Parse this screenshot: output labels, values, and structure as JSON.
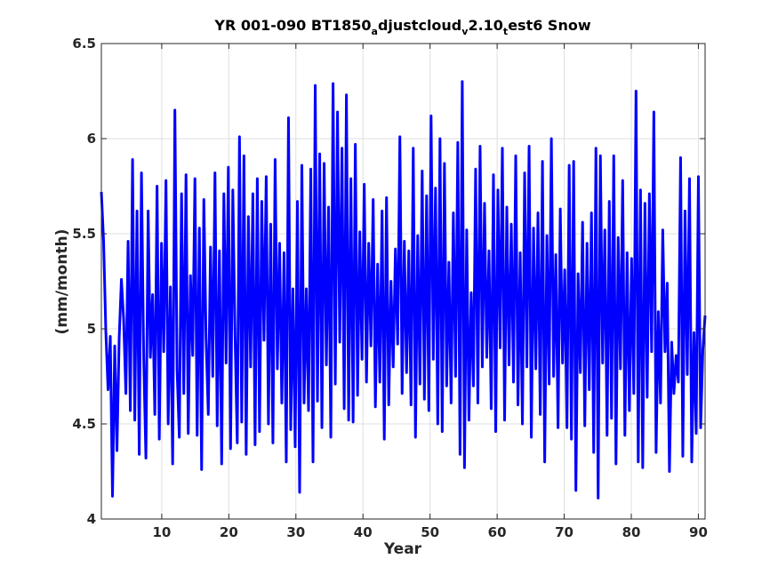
{
  "chart_data": {
    "type": "line",
    "title": {
      "prefix": "YR 001-090 BT1850",
      "sub1": "a",
      "mid": "djustcloud",
      "sub2": "v",
      "mid2": "2.10",
      "sub3": "t",
      "suffix": "est6 Snow"
    },
    "xlabel": "Year",
    "ylabel": "(mm/month)",
    "xlim": [
      1,
      91
    ],
    "ylim": [
      4,
      6.5
    ],
    "xticks": [
      10,
      20,
      30,
      40,
      50,
      60,
      70,
      80,
      90
    ],
    "yticks": [
      4,
      4.5,
      5,
      5.5,
      6,
      6.5
    ],
    "ytick_labels": [
      "4",
      "4.5",
      "5",
      "5.5",
      "6",
      "6.5"
    ],
    "grid": true,
    "line_color": "#0000ff",
    "series": [
      {
        "values": [
          5.72,
          5.46,
          4.99,
          4.68,
          4.96,
          4.12,
          4.91,
          4.36,
          4.95,
          5.26,
          5.05,
          4.66,
          5.46,
          4.57,
          5.89,
          4.52,
          5.62,
          4.34,
          5.82,
          4.85,
          4.32,
          5.62,
          4.85,
          5.18,
          4.55,
          5.75,
          4.42,
          5.45,
          4.88,
          5.78,
          4.5,
          5.22,
          4.29,
          6.15,
          4.78,
          4.43,
          5.71,
          4.66,
          5.81,
          4.45,
          5.28,
          4.86,
          5.79,
          4.44,
          5.53,
          4.26,
          5.68,
          4.95,
          4.55,
          5.43,
          4.75,
          5.82,
          4.49,
          5.41,
          4.29,
          5.71,
          4.82,
          5.85,
          4.37,
          5.73,
          4.97,
          4.4,
          6.01,
          4.51,
          5.91,
          4.34,
          5.59,
          4.8,
          5.71,
          4.39,
          5.79,
          4.46,
          5.67,
          4.94,
          5.8,
          4.5,
          5.55,
          4.4,
          5.89,
          4.79,
          5.45,
          4.61,
          5.4,
          4.3,
          6.11,
          4.47,
          5.21,
          4.38,
          5.67,
          4.14,
          5.86,
          4.61,
          5.21,
          4.57,
          5.84,
          4.3,
          6.28,
          4.62,
          5.92,
          4.48,
          5.87,
          4.81,
          5.64,
          4.43,
          6.29,
          4.71,
          6.14,
          4.93,
          5.95,
          4.58,
          6.23,
          4.52,
          5.79,
          4.51,
          5.97,
          4.65,
          5.51,
          4.84,
          5.76,
          4.72,
          5.45,
          4.91,
          5.68,
          4.59,
          5.34,
          4.72,
          5.62,
          4.42,
          5.69,
          4.6,
          5.25,
          4.8,
          5.42,
          4.92,
          6.01,
          4.66,
          5.46,
          4.77,
          5.41,
          4.6,
          5.95,
          4.43,
          5.49,
          4.71,
          5.83,
          4.63,
          5.7,
          4.57,
          6.12,
          4.84,
          5.74,
          4.5,
          6.0,
          4.46,
          5.87,
          4.7,
          5.35,
          4.61,
          5.61,
          4.75,
          5.98,
          4.34,
          6.3,
          4.27,
          5.52,
          4.52,
          5.19,
          4.7,
          5.84,
          4.61,
          5.96,
          4.8,
          5.66,
          4.85,
          5.41,
          4.58,
          5.81,
          4.46,
          5.73,
          4.9,
          5.95,
          4.52,
          5.64,
          4.81,
          5.55,
          4.72,
          5.91,
          4.6,
          5.4,
          4.5,
          5.82,
          4.8,
          5.96,
          4.43,
          5.53,
          4.79,
          5.61,
          4.55,
          5.88,
          4.3,
          5.49,
          4.71,
          6.0,
          4.75,
          5.39,
          4.48,
          5.63,
          4.82,
          5.31,
          4.48,
          5.86,
          4.42,
          5.88,
          4.15,
          5.29,
          4.77,
          5.56,
          4.49,
          5.45,
          4.68,
          5.61,
          4.35,
          5.95,
          4.11,
          5.91,
          4.82,
          5.52,
          4.44,
          5.67,
          4.53,
          5.91,
          4.29,
          5.48,
          4.79,
          5.78,
          4.44,
          5.4,
          4.57,
          5.37,
          4.66,
          6.25,
          4.3,
          5.73,
          4.27,
          5.66,
          4.64,
          5.71,
          4.88,
          6.14,
          4.35,
          5.09,
          4.61,
          5.52,
          4.88,
          5.24,
          4.25,
          4.93,
          4.66,
          4.86,
          4.72,
          5.9,
          4.33,
          5.62,
          4.76,
          5.79,
          4.3,
          4.98,
          4.45,
          5.8,
          4.48,
          4.89,
          5.07
        ]
      }
    ]
  }
}
